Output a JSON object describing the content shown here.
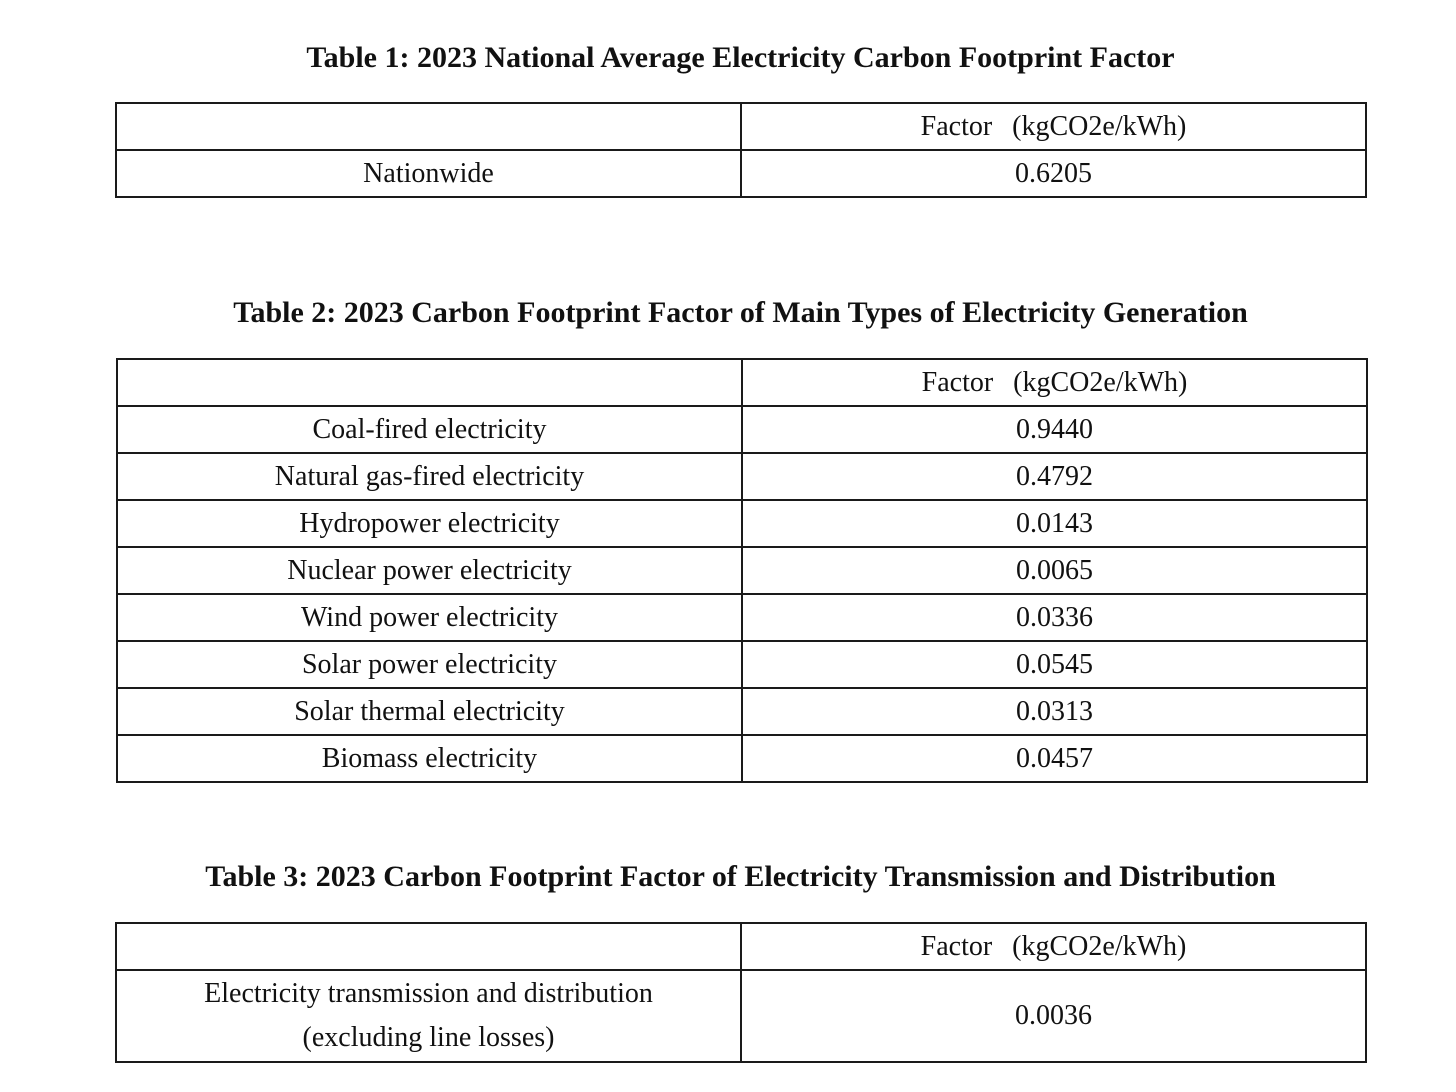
{
  "table1": {
    "caption": "Table 1: 2023 National Average Electricity Carbon Footprint Factor",
    "header": {
      "blank": "",
      "factor": "Factor",
      "unit": "(kgCO2e/kWh)"
    },
    "rows": [
      {
        "label": "Nationwide",
        "value": "0.6205"
      }
    ]
  },
  "table2": {
    "caption": "Table 2: 2023 Carbon Footprint Factor of Main Types of Electricity Generation",
    "header": {
      "blank": "",
      "factor": "Factor",
      "unit": "(kgCO2e/kWh)"
    },
    "rows": [
      {
        "label": "Coal-fired electricity",
        "value": "0.9440"
      },
      {
        "label": "Natural gas-fired electricity",
        "value": "0.4792"
      },
      {
        "label": "Hydropower electricity",
        "value": "0.0143"
      },
      {
        "label": "Nuclear power electricity",
        "value": "0.0065"
      },
      {
        "label": "Wind power electricity",
        "value": "0.0336"
      },
      {
        "label": "Solar power electricity",
        "value": "0.0545"
      },
      {
        "label": "Solar thermal electricity",
        "value": "0.0313"
      },
      {
        "label": "Biomass electricity",
        "value": "0.0457"
      }
    ]
  },
  "table3": {
    "caption": "Table 3: 2023 Carbon Footprint Factor of Electricity Transmission and Distribution",
    "header": {
      "blank": "",
      "factor": "Factor",
      "unit": "(kgCO2e/kWh)"
    },
    "rows": [
      {
        "label_line1": "Electricity transmission and distribution",
        "label_line2": "(excluding line losses)",
        "value": "0.0036"
      }
    ]
  }
}
